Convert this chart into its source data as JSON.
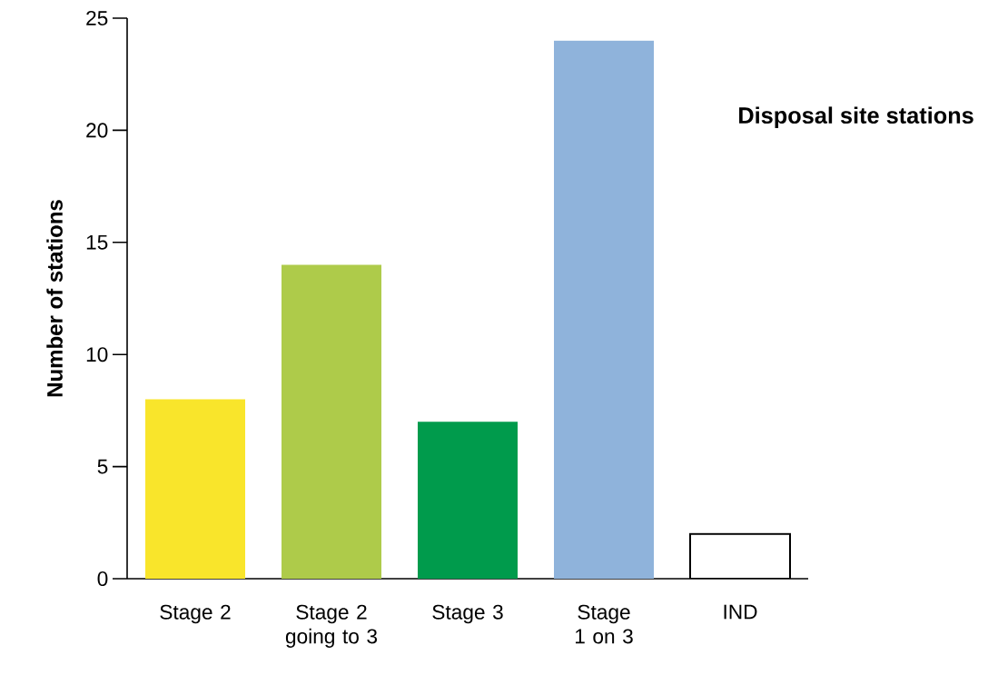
{
  "chart_data": {
    "type": "bar",
    "title": "Disposal site stations",
    "ylabel": "Number of stations",
    "categories": [
      "Stage 2",
      "Stage 2 going to 3",
      "Stage 3",
      "Stage 1 on 3",
      "IND"
    ],
    "values": [
      8,
      14,
      7,
      24,
      2
    ],
    "colors": [
      "#f9e52b",
      "#aecb4a",
      "#009b4c",
      "#8fb3db",
      "#ffffff"
    ],
    "ylim": [
      0,
      25
    ],
    "yticks": [
      0,
      5,
      10,
      15,
      20,
      25
    ],
    "grid": false
  }
}
